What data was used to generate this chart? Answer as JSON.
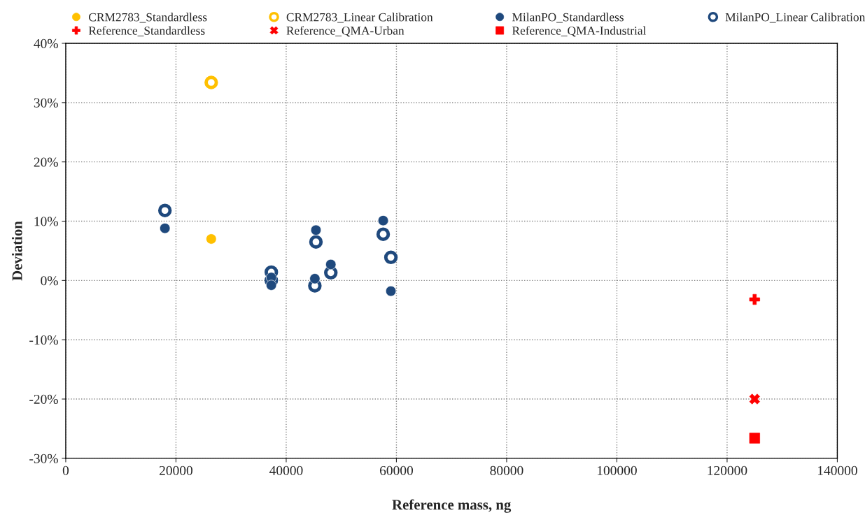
{
  "chart_data": {
    "type": "scatter",
    "xlabel": "Reference mass, ng",
    "ylabel": "Deviation",
    "xlim": [
      0,
      140000
    ],
    "xticks": [
      0,
      20000,
      40000,
      60000,
      80000,
      100000,
      120000,
      140000
    ],
    "ylim": [
      -30,
      40
    ],
    "yticks": [
      {
        "value": -30,
        "label": "-30%"
      },
      {
        "value": -20,
        "label": "-20%"
      },
      {
        "value": -10,
        "label": "-10%"
      },
      {
        "value": 0,
        "label": "0%"
      },
      {
        "value": 10,
        "label": "10%"
      },
      {
        "value": 20,
        "label": "20%"
      },
      {
        "value": 30,
        "label": "30%"
      },
      {
        "value": 40,
        "label": "40%"
      }
    ],
    "grid": true,
    "legend": "top",
    "series": [
      {
        "name": "CRM2783_Standardless",
        "color": "#ffc000",
        "marker": "circle",
        "x": [
          26400
        ],
        "values": [
          7.0
        ]
      },
      {
        "name": "CRM2783_Linear Calibration",
        "color": "#ffc000",
        "marker": "open circle",
        "x": [
          26400
        ],
        "values": [
          33.4
        ]
      },
      {
        "name": "MilanPO_Standardless",
        "color": "#1f497d",
        "marker": "circle",
        "x": [
          18000,
          37300,
          37300,
          45200,
          45400,
          48100,
          57600,
          59000
        ],
        "values": [
          8.8,
          0.5,
          -0.8,
          0.3,
          8.5,
          2.7,
          10.1,
          -1.8
        ]
      },
      {
        "name": "MilanPO_Linear Calibration",
        "color": "#1f497d",
        "marker": "open circle",
        "x": [
          18000,
          37300,
          37300,
          45200,
          45400,
          48100,
          57600,
          59000
        ],
        "values": [
          11.8,
          1.4,
          0.0,
          -0.9,
          6.5,
          1.3,
          7.8,
          3.9
        ]
      },
      {
        "name": "Reference_Standardless",
        "color": "#ff0000",
        "marker": "plus",
        "x": [
          125000
        ],
        "values": [
          -3.2
        ]
      },
      {
        "name": "Reference_QMA-Urban",
        "color": "#ff0000",
        "marker": "cross",
        "x": [
          125000
        ],
        "values": [
          -20.0
        ]
      },
      {
        "name": "Reference_QMA-Industrial",
        "color": "#ff0000",
        "marker": "square",
        "x": [
          125000
        ],
        "values": [
          -26.6
        ]
      }
    ]
  }
}
